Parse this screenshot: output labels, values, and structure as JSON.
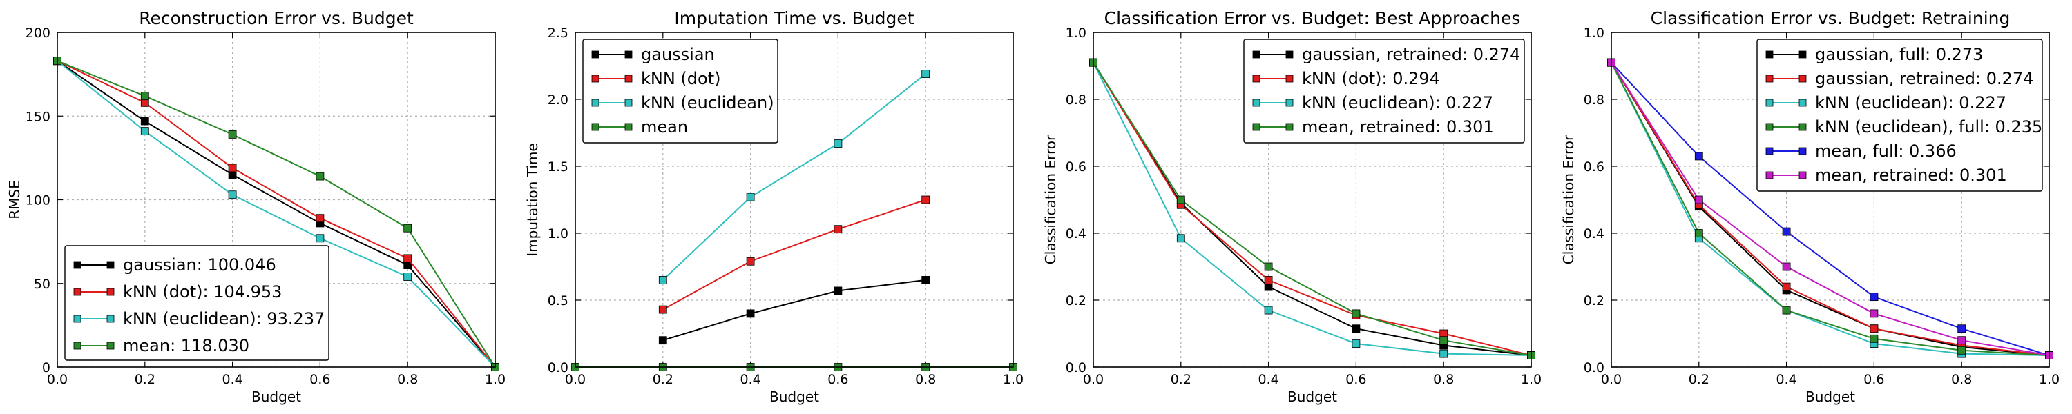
{
  "chart_data": [
    {
      "type": "line",
      "title": "Reconstruction Error vs. Budget",
      "xlabel": "Budget",
      "ylabel": "RMSE",
      "xlim": [
        0.0,
        1.0
      ],
      "ylim": [
        0,
        200
      ],
      "xticks": [
        "0.0",
        "0.2",
        "0.4",
        "0.6",
        "0.8",
        "1.0"
      ],
      "yticks": [
        "0",
        "50",
        "100",
        "150",
        "200"
      ],
      "grid": true,
      "legend_position": "bottom-left",
      "series": [
        {
          "name": "gaussian: 100.046",
          "color": "#000000",
          "x": [
            0.0,
            0.2,
            0.4,
            0.6,
            0.8,
            1.0
          ],
          "values": [
            183,
            147,
            115,
            86,
            61,
            0
          ]
        },
        {
          "name": "kNN (dot): 104.953",
          "color": "#e01c1c",
          "x": [
            0.0,
            0.2,
            0.4,
            0.6,
            0.8,
            1.0
          ],
          "values": [
            183,
            158,
            119,
            89,
            65,
            0
          ]
        },
        {
          "name": "kNN (euclidean): 93.237",
          "color": "#2ebfbf",
          "x": [
            0.0,
            0.2,
            0.4,
            0.6,
            0.8,
            1.0
          ],
          "values": [
            183,
            141,
            103,
            77,
            54,
            0
          ]
        },
        {
          "name": "mean: 118.030",
          "color": "#2a8a2a",
          "x": [
            0.0,
            0.2,
            0.4,
            0.6,
            0.8,
            1.0
          ],
          "values": [
            183,
            162,
            139,
            114,
            83,
            0
          ]
        }
      ]
    },
    {
      "type": "line",
      "title": "Imputation Time vs. Budget",
      "xlabel": "Budget",
      "ylabel": "Imputation Time",
      "xlim": [
        0.0,
        1.0
      ],
      "ylim": [
        0,
        2.5
      ],
      "xticks": [
        "0.0",
        "0.2",
        "0.4",
        "0.6",
        "0.8",
        "1.0"
      ],
      "yticks": [
        "0.0",
        "0.5",
        "1.0",
        "1.5",
        "2.0",
        "2.5"
      ],
      "grid": true,
      "legend_position": "top-left",
      "series": [
        {
          "name": "gaussian",
          "color": "#000000",
          "x": [
            0.2,
            0.4,
            0.6,
            0.8
          ],
          "values": [
            0.2,
            0.4,
            0.57,
            0.65
          ]
        },
        {
          "name": "kNN (dot)",
          "color": "#e01c1c",
          "x": [
            0.2,
            0.4,
            0.6,
            0.8
          ],
          "values": [
            0.43,
            0.79,
            1.03,
            1.25
          ]
        },
        {
          "name": "kNN (euclidean)",
          "color": "#2ebfbf",
          "x": [
            0.2,
            0.4,
            0.6,
            0.8
          ],
          "values": [
            0.65,
            1.27,
            1.67,
            2.19
          ]
        },
        {
          "name": "mean",
          "color": "#2a8a2a",
          "x": [
            0.0,
            0.2,
            0.4,
            0.6,
            0.8,
            1.0
          ],
          "values": [
            0,
            0,
            0,
            0,
            0,
            0
          ]
        }
      ]
    },
    {
      "type": "line",
      "title": "Classification Error vs. Budget: Best Approaches",
      "xlabel": "Budget",
      "ylabel": "Classification Error",
      "xlim": [
        0.0,
        1.0
      ],
      "ylim": [
        0,
        1.0
      ],
      "xticks": [
        "0.0",
        "0.2",
        "0.4",
        "0.6",
        "0.8",
        "1.0"
      ],
      "yticks": [
        "0.0",
        "0.2",
        "0.4",
        "0.6",
        "0.8",
        "1.0"
      ],
      "grid": true,
      "legend_position": "top-right",
      "series": [
        {
          "name": "gaussian, retrained: 0.274",
          "color": "#000000",
          "x": [
            0.0,
            0.2,
            0.4,
            0.6,
            0.8,
            1.0
          ],
          "values": [
            0.91,
            0.49,
            0.24,
            0.115,
            0.065,
            0.035
          ]
        },
        {
          "name": "kNN (dot): 0.294",
          "color": "#e01c1c",
          "x": [
            0.0,
            0.2,
            0.4,
            0.6,
            0.8,
            1.0
          ],
          "values": [
            0.91,
            0.485,
            0.26,
            0.155,
            0.1,
            0.035
          ]
        },
        {
          "name": "kNN (euclidean): 0.227",
          "color": "#2ebfbf",
          "x": [
            0.0,
            0.2,
            0.4,
            0.6,
            0.8,
            1.0
          ],
          "values": [
            0.91,
            0.385,
            0.17,
            0.07,
            0.04,
            0.035
          ]
        },
        {
          "name": "mean, retrained: 0.301",
          "color": "#2a8a2a",
          "x": [
            0.0,
            0.2,
            0.4,
            0.6,
            0.8,
            1.0
          ],
          "values": [
            0.91,
            0.5,
            0.3,
            0.16,
            0.08,
            0.035
          ]
        }
      ]
    },
    {
      "type": "line",
      "title": "Classification Error vs. Budget: Retraining",
      "xlabel": "Budget",
      "ylabel": "Classification Error",
      "xlim": [
        0.0,
        1.0
      ],
      "ylim": [
        0,
        1.0
      ],
      "xticks": [
        "0.0",
        "0.2",
        "0.4",
        "0.6",
        "0.8",
        "1.0"
      ],
      "yticks": [
        "0.0",
        "0.2",
        "0.4",
        "0.6",
        "0.8",
        "1.0"
      ],
      "grid": true,
      "legend_position": "top-right",
      "series": [
        {
          "name": "gaussian, full: 0.273",
          "color": "#000000",
          "x": [
            0.0,
            0.2,
            0.4,
            0.6,
            0.8,
            1.0
          ],
          "values": [
            0.91,
            0.48,
            0.23,
            0.115,
            0.06,
            0.035
          ]
        },
        {
          "name": "gaussian, retrained: 0.274",
          "color": "#e01c1c",
          "x": [
            0.0,
            0.2,
            0.4,
            0.6,
            0.8,
            1.0
          ],
          "values": [
            0.91,
            0.485,
            0.24,
            0.115,
            0.065,
            0.035
          ]
        },
        {
          "name": "kNN (euclidean): 0.227",
          "color": "#2ebfbf",
          "x": [
            0.0,
            0.2,
            0.4,
            0.6,
            0.8,
            1.0
          ],
          "values": [
            0.91,
            0.385,
            0.17,
            0.07,
            0.04,
            0.035
          ]
        },
        {
          "name": "kNN (euclidean), full: 0.235",
          "color": "#2a8a2a",
          "x": [
            0.0,
            0.2,
            0.4,
            0.6,
            0.8,
            1.0
          ],
          "values": [
            0.91,
            0.4,
            0.17,
            0.085,
            0.05,
            0.035
          ]
        },
        {
          "name": "mean, full: 0.366",
          "color": "#1c1ce0",
          "x": [
            0.0,
            0.2,
            0.4,
            0.6,
            0.8,
            1.0
          ],
          "values": [
            0.91,
            0.63,
            0.405,
            0.21,
            0.115,
            0.035
          ]
        },
        {
          "name": "mean, retrained: 0.301",
          "color": "#c21cc2",
          "x": [
            0.0,
            0.2,
            0.4,
            0.6,
            0.8,
            1.0
          ],
          "values": [
            0.91,
            0.5,
            0.3,
            0.16,
            0.08,
            0.035
          ]
        }
      ]
    }
  ]
}
